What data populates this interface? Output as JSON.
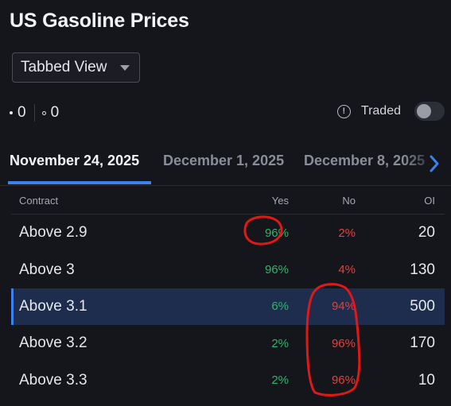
{
  "title": "US Gasoline Prices",
  "view_select": {
    "value": "Tabbed View",
    "icon": "chevron-down-icon"
  },
  "counts": {
    "filled": "0",
    "empty": "0"
  },
  "traded": {
    "label": "Traded",
    "enabled": false,
    "icon": "info-icon"
  },
  "tabs": [
    {
      "label": "November 24, 2025",
      "active": true
    },
    {
      "label": "December 1, 2025",
      "active": false
    },
    {
      "label": "December 8, 2025",
      "active": false
    }
  ],
  "table": {
    "headers": {
      "contract": "Contract",
      "yes": "Yes",
      "no": "No",
      "oi": "OI"
    },
    "rows": [
      {
        "contract": "Above 2.9",
        "yes": "96%",
        "no": "2%",
        "oi": "20"
      },
      {
        "contract": "Above 3",
        "yes": "96%",
        "no": "4%",
        "oi": "130"
      },
      {
        "contract": "Above 3.1",
        "yes": "6%",
        "no": "94%",
        "oi": "500",
        "selected": true
      },
      {
        "contract": "Above 3.2",
        "yes": "2%",
        "no": "96%",
        "oi": "170"
      },
      {
        "contract": "Above 3.3",
        "yes": "2%",
        "no": "96%",
        "oi": "10"
      }
    ]
  },
  "colors": {
    "background": "#15161c",
    "accent": "#3b82f0",
    "yes": "#2fb36b",
    "no": "#e0413f",
    "annotation": "#e01818"
  }
}
